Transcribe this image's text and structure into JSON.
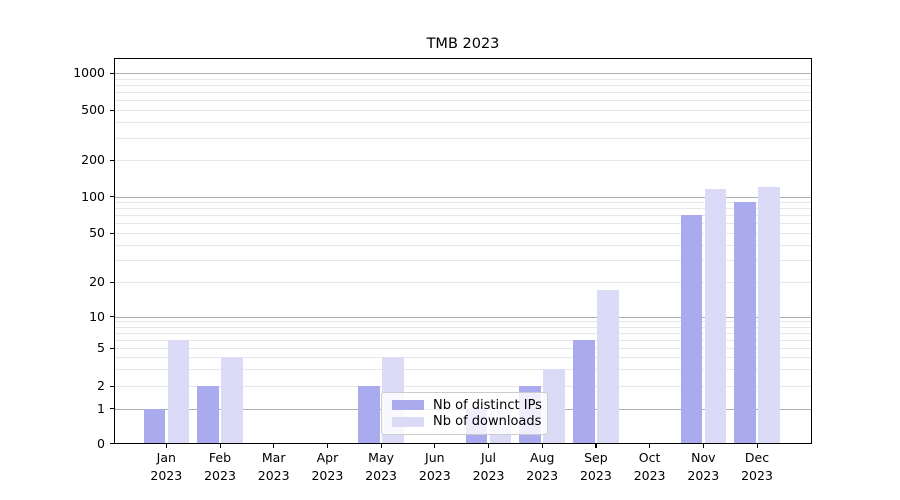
{
  "chart_data": {
    "type": "bar",
    "title": "TMB 2023",
    "categories": [
      "Jan",
      "Feb",
      "Mar",
      "Apr",
      "May",
      "Jun",
      "Jul",
      "Aug",
      "Sep",
      "Oct",
      "Nov",
      "Dec"
    ],
    "year_label": "2023",
    "series": [
      {
        "name": "Nb of distinct IPs",
        "color": "#aaaaee",
        "values": [
          1,
          2,
          0,
          0,
          2,
          0,
          1,
          2,
          6,
          0,
          70,
          90
        ]
      },
      {
        "name": "Nb of downloads",
        "color": "#dbdbf7",
        "values": [
          6,
          4,
          0,
          0,
          4,
          0,
          1,
          3,
          17,
          0,
          115,
          120
        ]
      }
    ],
    "yscale": "symlog",
    "yticks": [
      0,
      1,
      2,
      5,
      10,
      20,
      50,
      100,
      200,
      500,
      1000
    ],
    "ylim": [
      0,
      1300
    ],
    "grid": "both",
    "legend_position": "lower center",
    "style": {
      "major_grid_color": "#b0b0b0",
      "minor_grid_color": "#e7e7e7",
      "axis_color": "#000000"
    }
  }
}
